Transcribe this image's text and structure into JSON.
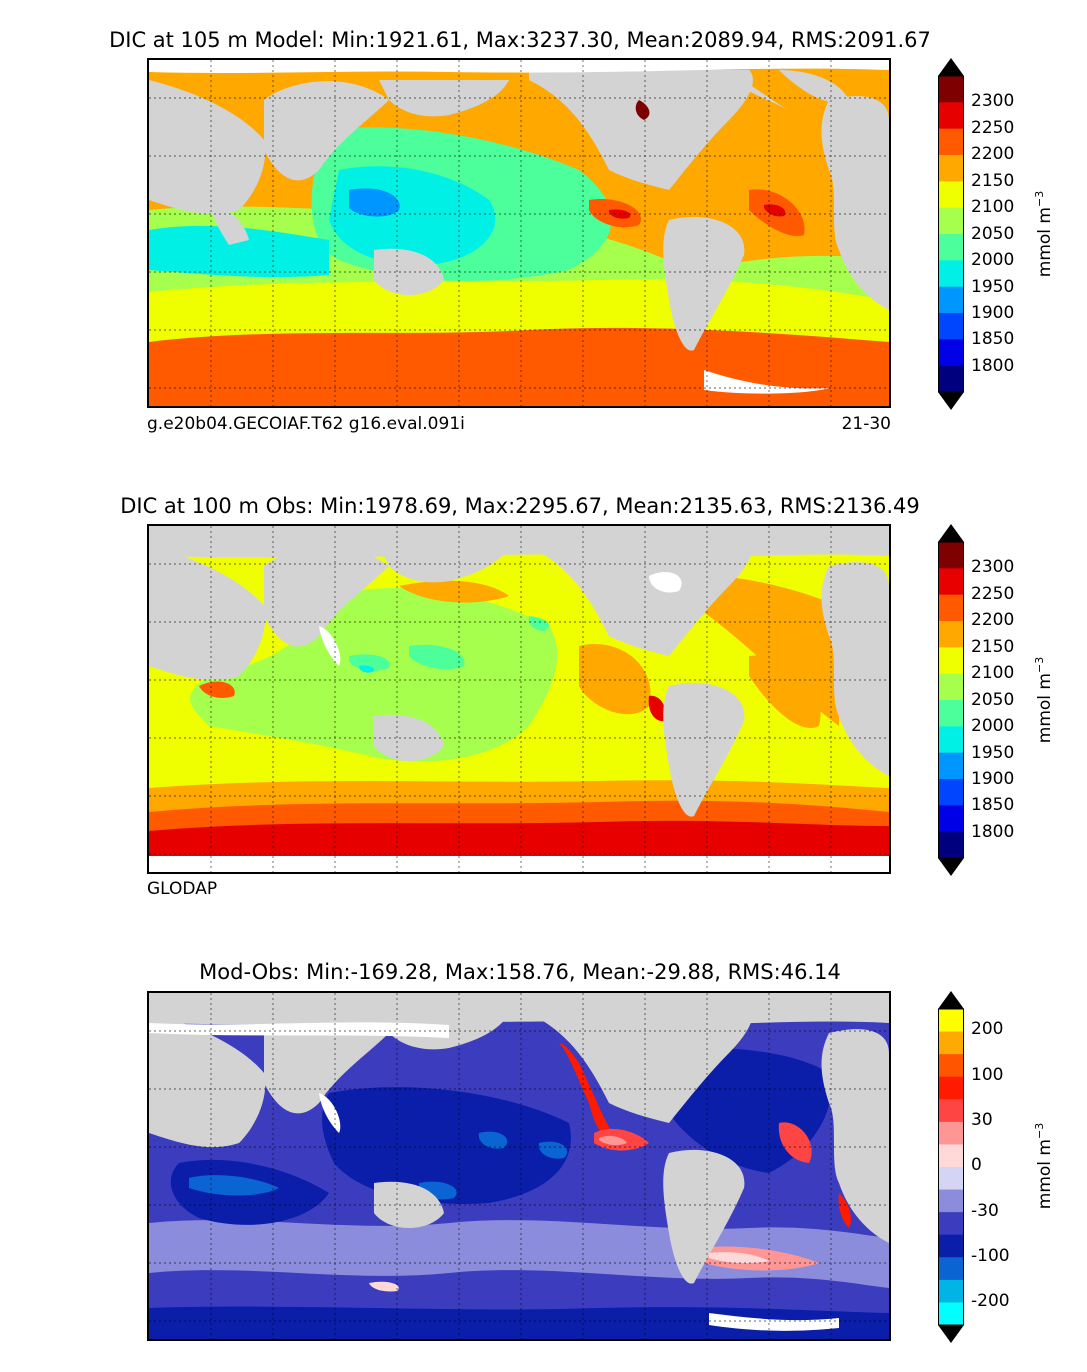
{
  "panels": [
    {
      "title": "DIC at 105 m Model: Min:1921.61, Max:3237.30, Mean:2089.94, RMS:2091.67",
      "subtitle_left": "g.e20b04.GECOIAF.T62 g16.eval.091i",
      "subtitle_right": "21-30",
      "colorbar": {
        "ticks": [
          "2300",
          "2250",
          "2200",
          "2150",
          "2100",
          "2050",
          "2000",
          "1950",
          "1900",
          "1850",
          "1800"
        ],
        "colors": [
          "#7f0000",
          "#e60000",
          "#ff5a00",
          "#ffa800",
          "#f0ff00",
          "#a6ff4c",
          "#4dff9a",
          "#00f0e6",
          "#0096ff",
          "#0046ff",
          "#0000e6",
          "#00007f"
        ],
        "units": "mmol m",
        "units_exp": "−3"
      }
    },
    {
      "title": "DIC at 100 m Obs: Min:1978.69, Max:2295.67, Mean:2135.63, RMS:2136.49",
      "subtitle_left": "GLODAP",
      "subtitle_right": "",
      "colorbar": {
        "ticks": [
          "2300",
          "2250",
          "2200",
          "2150",
          "2100",
          "2050",
          "2000",
          "1950",
          "1900",
          "1850",
          "1800"
        ],
        "colors": [
          "#7f0000",
          "#e60000",
          "#ff5a00",
          "#ffa800",
          "#f0ff00",
          "#a6ff4c",
          "#4dff9a",
          "#00f0e6",
          "#0096ff",
          "#0046ff",
          "#0000e6",
          "#00007f"
        ],
        "units": "mmol m",
        "units_exp": "−3"
      }
    },
    {
      "title": "Mod-Obs: Min:-169.28, Max:158.76, Mean:-29.88, RMS:46.14",
      "subtitle_left": "",
      "subtitle_right": "",
      "colorbar": {
        "ticks": [
          "200",
          "100",
          "30",
          "0",
          "-30",
          "-100",
          "-200"
        ],
        "colors": [
          "#ffff00",
          "#ffaa00",
          "#ff5500",
          "#ff1a00",
          "#ff4444",
          "#ff9696",
          "#ffd8d8",
          "#d4d4f5",
          "#8c8cdc",
          "#3c3cbe",
          "#0a1eaa",
          "#0a64d2",
          "#00b4e6",
          "#00ffff"
        ],
        "units": "mmol m",
        "units_exp": "−3"
      }
    }
  ],
  "legend": {
    "land_color": "#d3d3d3",
    "missing_color": "#ffffff"
  }
}
